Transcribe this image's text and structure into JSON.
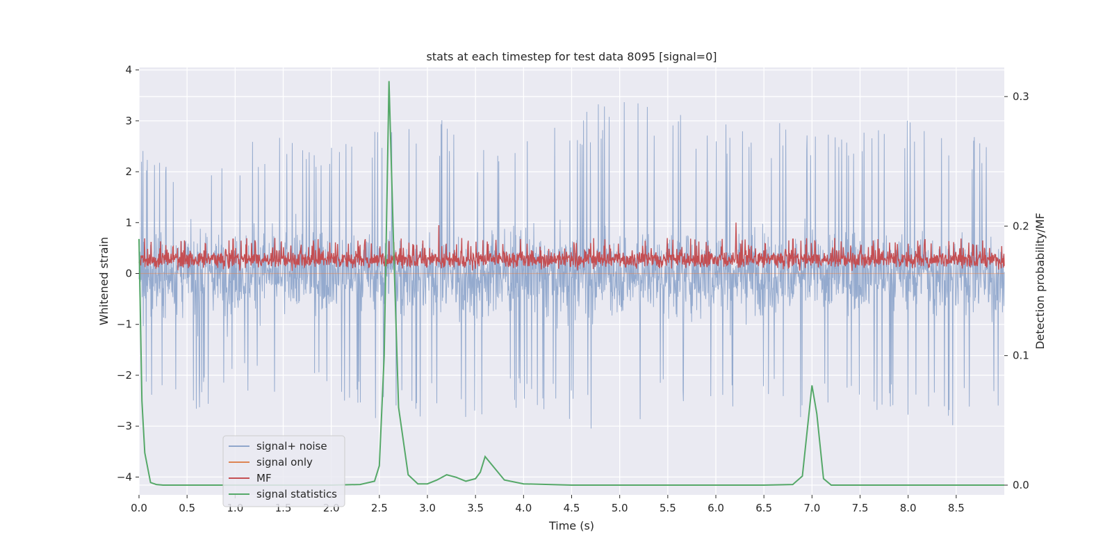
{
  "chart_data": {
    "type": "line",
    "title": "stats at each timestep for test data 8095 [signal=0]",
    "xlabel": "Time (s)",
    "ylabel": "Whitened strain",
    "y2label": "Detection probability/MF",
    "xlim": [
      0.0,
      9.0
    ],
    "ylim": [
      -4.35,
      4.05
    ],
    "y2lim": [
      -0.0075,
      0.3225
    ],
    "x_ticks": [
      "0.0",
      "0.5",
      "1.0",
      "1.5",
      "2.0",
      "2.5",
      "3.0",
      "3.5",
      "4.0",
      "4.5",
      "5.0",
      "5.5",
      "6.0",
      "6.5",
      "7.0",
      "7.5",
      "8.0",
      "8.5"
    ],
    "y_ticks": [
      "4",
      "3",
      "2",
      "1",
      "0",
      "−1",
      "−2",
      "−3",
      "−4"
    ],
    "y2_ticks": [
      "0.3",
      "0.2",
      "0.1",
      "0.0"
    ],
    "grid": true,
    "legend_position": "lower-left",
    "legend": [
      "signal+ noise",
      "signal only",
      "MF",
      "signal statistics"
    ],
    "colors": {
      "background": "#eaeaf2",
      "grid": "#ffffff",
      "noise": "#8fa6cb",
      "signal_only": "#dd8452",
      "mf": "#c44e52",
      "stats": "#55a868"
    },
    "series": [
      {
        "name": "signal+ noise",
        "axis": "left",
        "description_range": [
          -3.4,
          3.6
        ],
        "envelope": {
          "x": [
            0.0,
            0.5,
            1.0,
            1.5,
            2.0,
            2.5,
            3.0,
            3.5,
            4.0,
            4.5,
            5.0,
            5.5,
            6.0,
            6.5,
            7.0,
            7.5,
            8.0,
            8.5,
            9.0
          ],
          "upper": [
            2.5,
            2.3,
            2.5,
            2.8,
            2.6,
            2.9,
            3.2,
            2.6,
            2.8,
            3.1,
            3.6,
            3.4,
            3.0,
            2.9,
            3.1,
            2.9,
            3.1,
            2.8,
            2.5
          ],
          "lower": [
            -2.6,
            -2.8,
            -2.3,
            -2.4,
            -2.5,
            -2.9,
            -2.8,
            -2.9,
            -2.6,
            -3.0,
            -3.3,
            -2.7,
            -2.6,
            -2.7,
            -2.9,
            -2.8,
            -2.8,
            -3.0,
            -2.6
          ]
        }
      },
      {
        "name": "signal only",
        "axis": "left",
        "x": [
          0.0,
          9.0
        ],
        "y": [
          0.0,
          0.0
        ]
      },
      {
        "name": "MF",
        "axis": "left",
        "band": [
          0.05,
          0.6
        ],
        "spikes": [
          {
            "x": 3.12,
            "y": 0.95
          },
          {
            "x": 6.21,
            "y": 1.0
          }
        ]
      },
      {
        "name": "signal statistics",
        "axis": "right",
        "x": [
          0.0,
          0.03,
          0.06,
          0.12,
          0.18,
          0.25,
          0.4,
          0.6,
          0.8,
          1.0,
          1.5,
          2.0,
          2.3,
          2.45,
          2.5,
          2.55,
          2.6,
          2.65,
          2.7,
          2.8,
          2.9,
          3.0,
          3.1,
          3.2,
          3.3,
          3.4,
          3.5,
          3.55,
          3.6,
          3.7,
          3.8,
          4.0,
          4.5,
          5.0,
          6.0,
          6.5,
          6.8,
          6.9,
          7.0,
          7.05,
          7.12,
          7.2,
          7.5,
          8.0,
          8.5,
          9.0
        ],
        "y": [
          0.19,
          0.065,
          0.025,
          0.002,
          0.0005,
          0.0,
          0.0,
          0.0,
          0.0,
          0.0,
          0.0,
          0.0,
          0.0005,
          0.003,
          0.015,
          0.1,
          0.312,
          0.18,
          0.06,
          0.008,
          0.001,
          0.001,
          0.004,
          0.008,
          0.006,
          0.003,
          0.005,
          0.01,
          0.022,
          0.013,
          0.004,
          0.001,
          0.0,
          0.0,
          0.0,
          0.0,
          0.0005,
          0.007,
          0.077,
          0.055,
          0.005,
          0.0,
          0.0,
          0.0,
          0.0,
          0.0
        ]
      }
    ]
  }
}
